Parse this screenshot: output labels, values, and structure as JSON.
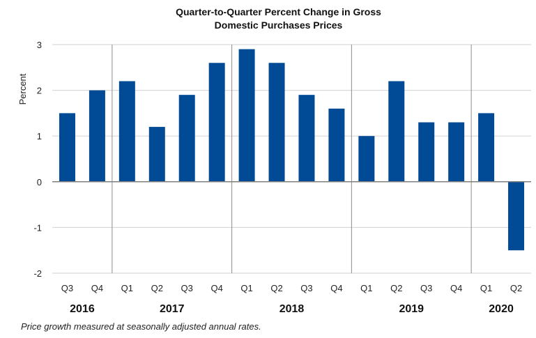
{
  "chart_data": {
    "type": "bar",
    "title_lines": [
      "Quarter-to-Quarter Percent Change in Gross",
      "Domestic Purchases Prices"
    ],
    "ylabel": "Percent",
    "xlabel": "",
    "ylim": [
      -2,
      3
    ],
    "yticks": [
      3,
      2,
      1,
      0,
      -1,
      -2
    ],
    "grid": true,
    "legend": "none",
    "bar_color": "#004a96",
    "categories": [
      "Q3",
      "Q4",
      "Q1",
      "Q2",
      "Q3",
      "Q4",
      "Q1",
      "Q2",
      "Q3",
      "Q4",
      "Q1",
      "Q2",
      "Q3",
      "Q4",
      "Q1",
      "Q2"
    ],
    "groups": [
      {
        "label": "2016",
        "count": 2
      },
      {
        "label": "2017",
        "count": 4
      },
      {
        "label": "2018",
        "count": 4
      },
      {
        "label": "2019",
        "count": 4
      },
      {
        "label": "2020",
        "count": 2
      }
    ],
    "values": [
      1.5,
      2.0,
      2.2,
      1.2,
      1.9,
      2.6,
      2.9,
      2.6,
      1.9,
      1.6,
      1.0,
      2.2,
      1.3,
      1.3,
      1.5,
      -1.5
    ]
  },
  "footnote": "Price growth measured at seasonally adjusted annual rates."
}
